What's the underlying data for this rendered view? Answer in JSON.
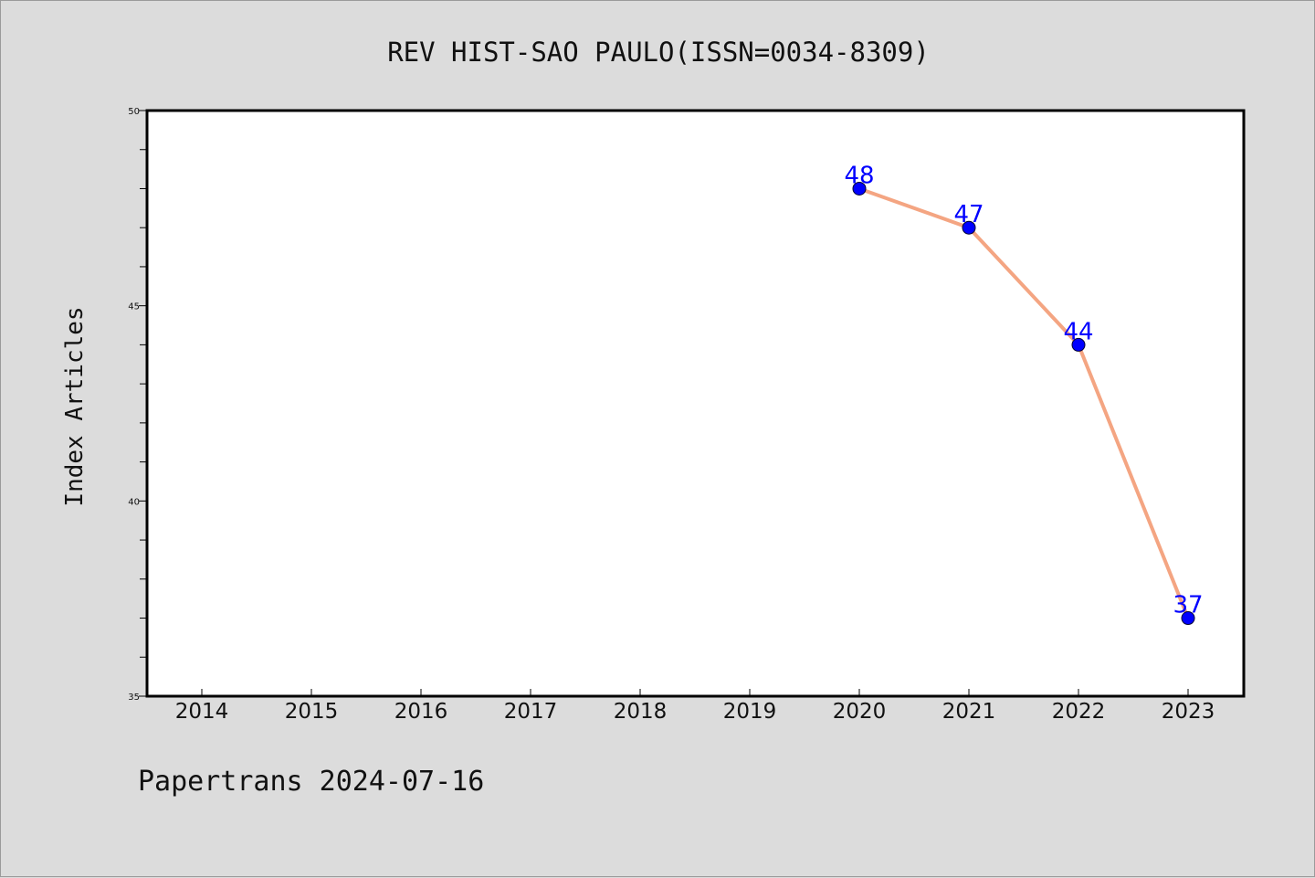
{
  "footer": "Papertrans 2024-07-16",
  "colors": {
    "line": "#f4a582",
    "marker": "#0000ff",
    "data_label": "#0000ff",
    "plot_background": "#ffffff",
    "page_background": "#dcdcdc"
  },
  "chart_data": {
    "type": "line",
    "title": "REV HIST-SAO PAULO(ISSN=0034-8309)",
    "xlabel": "",
    "ylabel": "Index Articles",
    "categories": [
      "2014",
      "2015",
      "2016",
      "2017",
      "2018",
      "2019",
      "2020",
      "2021",
      "2022",
      "2023"
    ],
    "yticks": [
      35,
      40,
      45,
      50
    ],
    "ylim": [
      35,
      50
    ],
    "grid": false,
    "series": [
      {
        "x": [
          "2020",
          "2021",
          "2022",
          "2023"
        ],
        "values": [
          48,
          47,
          44,
          37
        ]
      }
    ]
  }
}
